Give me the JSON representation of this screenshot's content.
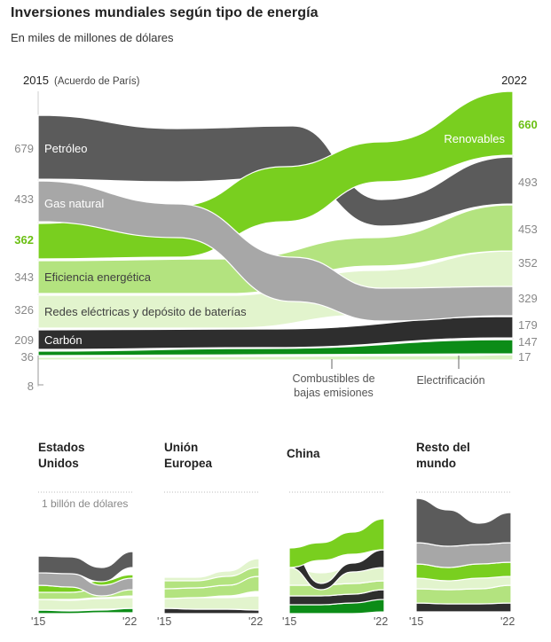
{
  "title": "Inversiones mundiales según tipo de energía",
  "subtitle": "En miles de millones de dólares",
  "colors": {
    "petroleo": "#5b5b5b",
    "gas": "#a7a7a7",
    "renovables": "#79cf1f",
    "eficiencia": "#b3e37f",
    "redes": "#e2f4cd",
    "carbon": "#2e2e2e",
    "combustibles": "#0c8c17",
    "electrificacion": "#d9f1c0",
    "accent_green": "#6abf12",
    "axis_gray": "#7d7d7d"
  },
  "chart_data": [
    {
      "type": "area",
      "title": "Inversiones mundiales según tipo de energía",
      "subtitle": "En miles de millones de dólares",
      "x_start_label": "2015",
      "x_start_note": "(Acuerdo de París)",
      "x_end_label": "2022",
      "x": [
        2015,
        2022
      ],
      "series": [
        {
          "key": "petroleo",
          "name": "Petróleo",
          "start": 679,
          "end": 493,
          "start_label": "679",
          "end_label": "493"
        },
        {
          "key": "renovables",
          "name": "Renovables",
          "start": 362,
          "end": 660,
          "start_label": "362",
          "end_label": "660"
        },
        {
          "key": "gas",
          "name": "Gas natural",
          "start": 433,
          "end": 329,
          "start_label": "433",
          "end_label": "329"
        },
        {
          "key": "eficiencia",
          "name": "Eficiencia energética",
          "start": 343,
          "end": 453,
          "start_label": "343",
          "end_label": "453"
        },
        {
          "key": "redes",
          "name": "Redes eléctricas y depósito de baterías",
          "start": 326,
          "end": 352,
          "start_label": "326",
          "end_label": "352"
        },
        {
          "key": "carbon",
          "name": "Carbón",
          "start": 209,
          "end": 179,
          "start_label": "209",
          "end_label": "179"
        },
        {
          "key": "combustibles",
          "name": "Combustibles de bajas emisiones",
          "start": 8,
          "end": 17,
          "start_label": "8",
          "end_label": "17"
        },
        {
          "key": "electrificacion",
          "name": "Electrificación",
          "start": 36,
          "end": 147,
          "start_label": "36",
          "end_label": "147"
        }
      ]
    },
    {
      "type": "area",
      "title": "Estados Unidos",
      "x_labels": [
        "'15",
        "'22"
      ],
      "reference_label": "1 billón de dólares"
    },
    {
      "type": "area",
      "title": "Unión Europea",
      "x_labels": [
        "'15",
        "'22"
      ]
    },
    {
      "type": "area",
      "title": "China",
      "x_labels": [
        "'15",
        "'22"
      ]
    },
    {
      "type": "area",
      "title": "Resto del mundo",
      "x_labels": [
        "'15",
        "'22"
      ]
    }
  ]
}
